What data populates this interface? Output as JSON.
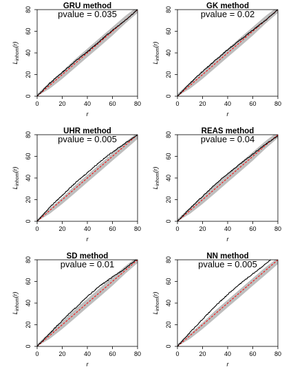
{
  "chart_data": [
    {
      "type": "line",
      "title": "GRU method",
      "subtitle": "pvalue = 0.035",
      "xlabel": "r",
      "ylabel_main": "L",
      "ylabel_sub": "inhom",
      "ylabel_arg": "(r)",
      "xlim": [
        0,
        80
      ],
      "ylim": [
        0,
        80
      ],
      "xticks": [
        0,
        20,
        40,
        60,
        80
      ],
      "yticks": [
        0,
        20,
        40,
        60,
        80
      ],
      "series": [
        {
          "role": "observed",
          "color": "#000000",
          "x": [
            0,
            10,
            20,
            30,
            40,
            50,
            60,
            70,
            80
          ],
          "y": [
            0,
            12,
            22,
            32,
            41,
            51,
            61,
            70,
            80
          ]
        },
        {
          "role": "theoretical",
          "color": "#ff0000",
          "x": [
            0,
            80
          ],
          "y": [
            0,
            80
          ]
        },
        {
          "role": "envelope_upper",
          "color": "#bebebe",
          "x": [
            0,
            10,
            20,
            30,
            40,
            50,
            60,
            70,
            80
          ],
          "y": [
            2,
            13,
            23,
            34,
            44,
            54,
            64,
            74,
            83
          ]
        },
        {
          "role": "envelope_lower",
          "color": "#bebebe",
          "x": [
            0,
            10,
            20,
            30,
            40,
            50,
            60,
            70,
            80
          ],
          "y": [
            0,
            7,
            16,
            26,
            36,
            46,
            56,
            67,
            77
          ]
        }
      ]
    },
    {
      "type": "line",
      "title": "GK method",
      "subtitle": "pvalue = 0.02",
      "xlabel": "r",
      "ylabel_main": "L",
      "ylabel_sub": "inhom",
      "ylabel_arg": "(r)",
      "xlim": [
        0,
        80
      ],
      "ylim": [
        0,
        80
      ],
      "xticks": [
        0,
        20,
        40,
        60,
        80
      ],
      "yticks": [
        0,
        20,
        40,
        60,
        80
      ],
      "series": [
        {
          "role": "observed",
          "color": "#000000",
          "x": [
            0,
            10,
            20,
            30,
            40,
            50,
            60,
            70,
            80
          ],
          "y": [
            0,
            12,
            23,
            33,
            43,
            52,
            61,
            70,
            80
          ]
        },
        {
          "role": "theoretical",
          "color": "#ff0000",
          "x": [
            0,
            80
          ],
          "y": [
            0,
            80
          ]
        },
        {
          "role": "envelope_upper",
          "color": "#bebebe",
          "x": [
            0,
            10,
            20,
            30,
            40,
            50,
            60,
            70,
            80
          ],
          "y": [
            2,
            13,
            23,
            34,
            44,
            54,
            64,
            74,
            83
          ]
        },
        {
          "role": "envelope_lower",
          "color": "#bebebe",
          "x": [
            0,
            10,
            20,
            30,
            40,
            50,
            60,
            70,
            80
          ],
          "y": [
            0,
            7,
            16,
            26,
            36,
            46,
            56,
            67,
            77
          ]
        }
      ]
    },
    {
      "type": "line",
      "title": "UHR method",
      "subtitle": "pvalue = 0.005",
      "xlabel": "r",
      "ylabel_main": "L",
      "ylabel_sub": "inhom",
      "ylabel_arg": "(r)",
      "xlim": [
        0,
        80
      ],
      "ylim": [
        0,
        80
      ],
      "xticks": [
        0,
        20,
        40,
        60,
        80
      ],
      "yticks": [
        0,
        20,
        40,
        60,
        80
      ],
      "series": [
        {
          "role": "observed",
          "color": "#000000",
          "x": [
            0,
            10,
            20,
            30,
            40,
            50,
            60,
            70,
            80
          ],
          "y": [
            0,
            13,
            24,
            35,
            45,
            55,
            64,
            72,
            80
          ]
        },
        {
          "role": "theoretical",
          "color": "#ff0000",
          "x": [
            0,
            80
          ],
          "y": [
            0,
            80
          ]
        },
        {
          "role": "envelope_upper",
          "color": "#bebebe",
          "x": [
            0,
            10,
            20,
            30,
            40,
            50,
            60,
            70,
            80
          ],
          "y": [
            2,
            12,
            22,
            33,
            43,
            53,
            63,
            73,
            82
          ]
        },
        {
          "role": "envelope_lower",
          "color": "#bebebe",
          "x": [
            0,
            10,
            20,
            30,
            40,
            50,
            60,
            70,
            80
          ],
          "y": [
            0,
            7,
            16,
            26,
            36,
            46,
            56,
            66,
            76
          ]
        }
      ]
    },
    {
      "type": "line",
      "title": "REAS method",
      "subtitle": "pvalue = 0.04",
      "xlabel": "r",
      "ylabel_main": "L",
      "ylabel_sub": "inhom",
      "ylabel_arg": "(r)",
      "xlim": [
        0,
        80
      ],
      "ylim": [
        0,
        80
      ],
      "xticks": [
        0,
        20,
        40,
        60,
        80
      ],
      "yticks": [
        0,
        20,
        40,
        60,
        80
      ],
      "series": [
        {
          "role": "observed",
          "color": "#000000",
          "x": [
            0,
            10,
            20,
            30,
            40,
            50,
            60,
            70,
            80
          ],
          "y": [
            0,
            12,
            23,
            34,
            44,
            53,
            62,
            71,
            79
          ]
        },
        {
          "role": "theoretical",
          "color": "#ff0000",
          "x": [
            0,
            80
          ],
          "y": [
            0,
            80
          ]
        },
        {
          "role": "envelope_upper",
          "color": "#bebebe",
          "x": [
            0,
            10,
            20,
            30,
            40,
            50,
            60,
            70,
            80
          ],
          "y": [
            2,
            13,
            23,
            34,
            44,
            54,
            64,
            74,
            83
          ]
        },
        {
          "role": "envelope_lower",
          "color": "#bebebe",
          "x": [
            0,
            10,
            20,
            30,
            40,
            50,
            60,
            70,
            80
          ],
          "y": [
            0,
            7,
            16,
            26,
            36,
            46,
            56,
            67,
            77
          ]
        }
      ]
    },
    {
      "type": "line",
      "title": "SD method",
      "subtitle": "pvalue = 0.01",
      "xlabel": "r",
      "ylabel_main": "L",
      "ylabel_sub": "inhom",
      "ylabel_arg": "(r)",
      "xlim": [
        0,
        80
      ],
      "ylim": [
        0,
        80
      ],
      "xticks": [
        0,
        20,
        40,
        60,
        80
      ],
      "yticks": [
        0,
        20,
        40,
        60,
        80
      ],
      "series": [
        {
          "role": "observed",
          "color": "#000000",
          "x": [
            0,
            10,
            20,
            30,
            40,
            50,
            60,
            70,
            80
          ],
          "y": [
            0,
            12,
            24,
            35,
            46,
            56,
            64,
            72,
            81
          ]
        },
        {
          "role": "theoretical",
          "color": "#ff0000",
          "x": [
            0,
            80
          ],
          "y": [
            0,
            80
          ]
        },
        {
          "role": "envelope_upper",
          "color": "#bebebe",
          "x": [
            0,
            10,
            20,
            30,
            40,
            50,
            60,
            70,
            80
          ],
          "y": [
            2,
            13,
            23,
            34,
            44,
            54,
            64,
            74,
            83
          ]
        },
        {
          "role": "envelope_lower",
          "color": "#bebebe",
          "x": [
            0,
            10,
            20,
            30,
            40,
            50,
            60,
            70,
            80
          ],
          "y": [
            0,
            7,
            16,
            26,
            36,
            46,
            56,
            67,
            77
          ]
        }
      ]
    },
    {
      "type": "line",
      "title": "NN method",
      "subtitle": "pvalue = 0.005",
      "xlabel": "r",
      "ylabel_main": "L",
      "ylabel_sub": "inhom",
      "ylabel_arg": "(r)",
      "xlim": [
        0,
        80
      ],
      "ylim": [
        0,
        80
      ],
      "xticks": [
        0,
        20,
        40,
        60,
        80
      ],
      "yticks": [
        0,
        20,
        40,
        60,
        80
      ],
      "series": [
        {
          "role": "observed",
          "color": "#000000",
          "x": [
            0,
            10,
            20,
            30,
            40,
            50,
            60,
            70,
            80
          ],
          "y": [
            0,
            13,
            25,
            37,
            48,
            58,
            67,
            76,
            85
          ]
        },
        {
          "role": "theoretical",
          "color": "#ff0000",
          "x": [
            0,
            80
          ],
          "y": [
            0,
            80
          ]
        },
        {
          "role": "envelope_upper",
          "color": "#bebebe",
          "x": [
            0,
            10,
            20,
            30,
            40,
            50,
            60,
            70,
            80
          ],
          "y": [
            2,
            12,
            22,
            33,
            43,
            53,
            63,
            73,
            82
          ]
        },
        {
          "role": "envelope_lower",
          "color": "#bebebe",
          "x": [
            0,
            10,
            20,
            30,
            40,
            50,
            60,
            70,
            80
          ],
          "y": [
            0,
            7,
            16,
            26,
            36,
            46,
            56,
            66,
            76
          ]
        }
      ]
    }
  ]
}
